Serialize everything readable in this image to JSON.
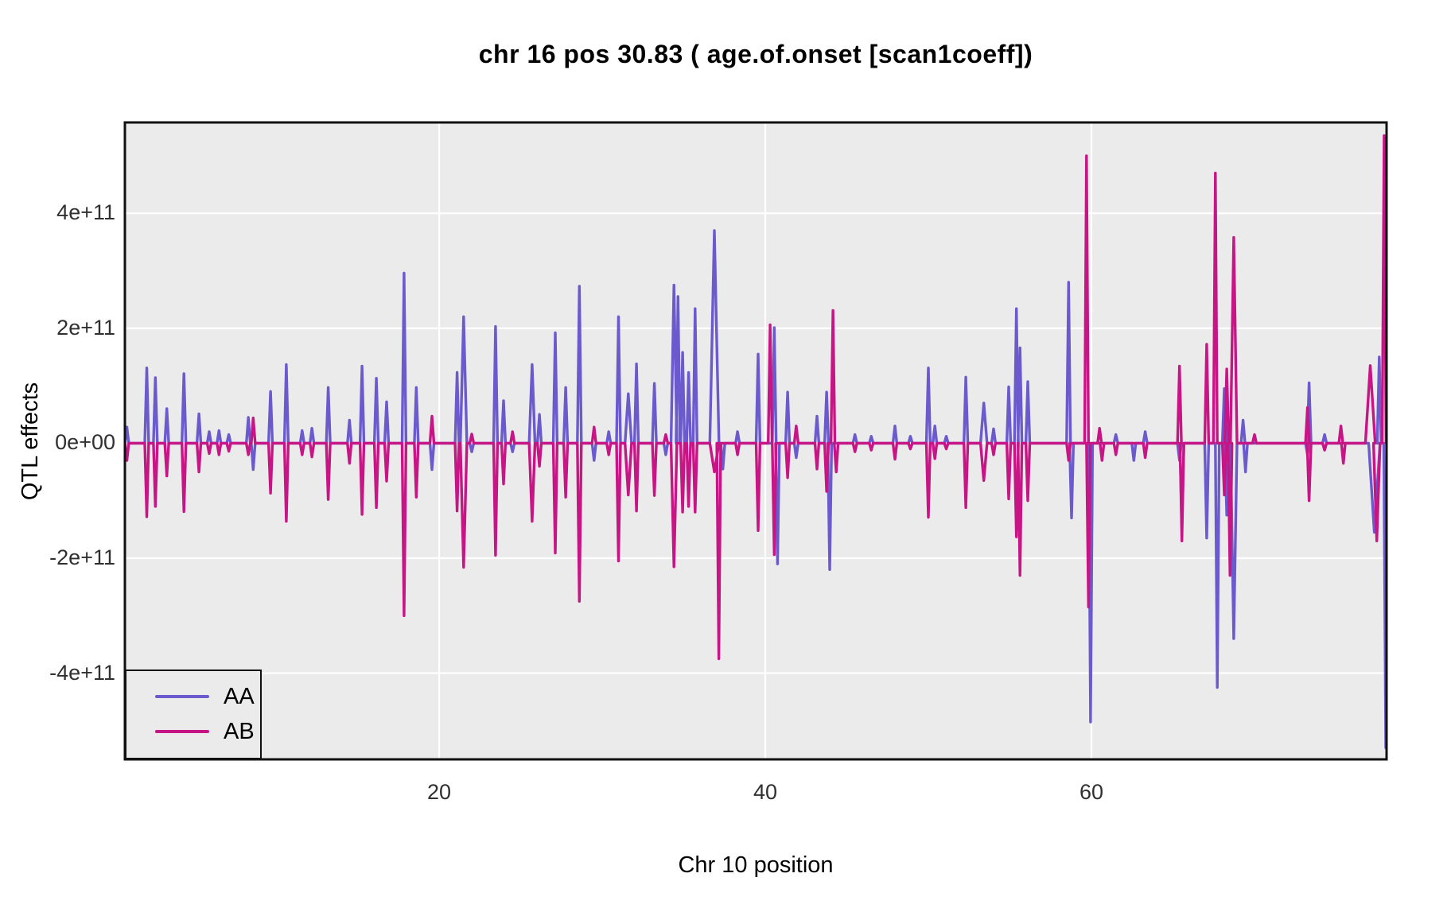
{
  "title": "chr 16 pos 30.83 ( age.of.onset  [scan1coeff])",
  "x_axis": {
    "title": "Chr 10 position",
    "tick_labels": [
      "20",
      "40",
      "60"
    ],
    "tick_values": [
      20,
      40,
      60
    ]
  },
  "y_axis": {
    "title": "QTL effects",
    "tick_labels": [
      "-4e+11",
      "-2e+11",
      "0e+00",
      "2e+11",
      "4e+11"
    ],
    "tick_values": [
      -400000000000.0,
      -200000000000.0,
      0,
      200000000000.0,
      400000000000.0
    ]
  },
  "legend": {
    "items": [
      {
        "label": "AA",
        "color": "#6A5ACD"
      },
      {
        "label": "AB",
        "color": "#C71585"
      }
    ]
  },
  "colors": {
    "panel_background": "#EBEBEB",
    "grid": "#FFFFFF",
    "panel_border": "#111111",
    "aa_line": "#6A5ACD",
    "ab_line": "#C71585"
  },
  "chart_data": {
    "type": "line",
    "title": "chr 16 pos 30.83 ( age.of.onset  [scan1coeff])",
    "xlabel": "Chr 10 position",
    "ylabel": "QTL effects",
    "series_names": [
      "AA",
      "AB"
    ],
    "legend_position": "bottom-left",
    "grid": "major-white-on-gray",
    "x_domain": [
      0.73,
      78.1
    ],
    "y_domain": [
      -550000000000.0,
      558000000000.0
    ],
    "baseline": 0,
    "default_spike_halfwidth": 0.12,
    "spikes": [
      {
        "x": 0.85,
        "aa": 28000000000.0,
        "ab": -30000000000.0
      },
      {
        "x": 2.07,
        "aa": 131000000000.0,
        "ab": -128000000000.0
      },
      {
        "x": 2.6,
        "aa": 114000000000.0,
        "ab": -110000000000.0
      },
      {
        "x": 3.3,
        "aa": 60000000000.0,
        "ab": -57000000000.0
      },
      {
        "x": 4.35,
        "aa": 121000000000.0,
        "ab": -119000000000.0
      },
      {
        "x": 5.27,
        "aa": 51000000000.0,
        "ab": -50000000000.0
      },
      {
        "x": 5.9,
        "aa": 20000000000.0,
        "ab": -18000000000.0
      },
      {
        "x": 6.5,
        "aa": 22000000000.0,
        "ab": -20000000000.0
      },
      {
        "x": 7.1,
        "aa": 15000000000.0,
        "ab": -14000000000.0
      },
      {
        "x": 8.3,
        "aa": 45000000000.0,
        "ab": -20000000000.0
      },
      {
        "x": 8.6,
        "aa": -46000000000.0,
        "ab": 44000000000.0
      },
      {
        "x": 9.66,
        "aa": 90000000000.0,
        "ab": -87000000000.0
      },
      {
        "x": 10.63,
        "aa": 137000000000.0,
        "ab": -136000000000.0
      },
      {
        "x": 11.6,
        "aa": 22000000000.0,
        "ab": -20000000000.0
      },
      {
        "x": 12.2,
        "aa": 26000000000.0,
        "ab": -24000000000.0
      },
      {
        "x": 13.2,
        "aa": 97000000000.0,
        "ab": -98000000000.0
      },
      {
        "x": 14.5,
        "aa": 40000000000.0,
        "ab": -35000000000.0
      },
      {
        "x": 15.27,
        "aa": 134000000000.0,
        "ab": -124000000000.0
      },
      {
        "x": 16.15,
        "aa": 113000000000.0,
        "ab": -112000000000.0
      },
      {
        "x": 16.78,
        "aa": 72000000000.0,
        "ab": -66000000000.0
      },
      {
        "x": 17.85,
        "aa": 296000000000.0,
        "ab": -300000000000.0
      },
      {
        "x": 18.6,
        "aa": 97000000000.0,
        "ab": -94000000000.0
      },
      {
        "x": 19.56,
        "aa": -46000000000.0,
        "ab": 47000000000.0
      },
      {
        "x": 21.1,
        "aa": 123000000000.0,
        "ab": -118000000000.0
      },
      {
        "x": 21.5,
        "aa": 220000000000.0,
        "ab": -216000000000.0,
        "w": 0.2
      },
      {
        "x": 22.0,
        "aa": -15000000000.0,
        "ab": 16000000000.0
      },
      {
        "x": 23.46,
        "aa": 203000000000.0,
        "ab": -195000000000.0
      },
      {
        "x": 23.95,
        "aa": 74000000000.0,
        "ab": -71000000000.0
      },
      {
        "x": 24.5,
        "aa": -15000000000.0,
        "ab": 20000000000.0
      },
      {
        "x": 25.7,
        "aa": 137000000000.0,
        "ab": -136000000000.0,
        "w": 0.18
      },
      {
        "x": 26.15,
        "aa": 50000000000.0,
        "ab": -40000000000.0
      },
      {
        "x": 27.12,
        "aa": 192000000000.0,
        "ab": -191000000000.0
      },
      {
        "x": 27.76,
        "aa": 97000000000.0,
        "ab": -94000000000.0
      },
      {
        "x": 28.6,
        "aa": 273000000000.0,
        "ab": -275000000000.0
      },
      {
        "x": 29.5,
        "aa": -30000000000.0,
        "ab": 28000000000.0
      },
      {
        "x": 30.4,
        "aa": 20000000000.0,
        "ab": -20000000000.0
      },
      {
        "x": 31.0,
        "aa": 220000000000.0,
        "ab": -205000000000.0
      },
      {
        "x": 31.6,
        "aa": 86000000000.0,
        "ab": -90000000000.0,
        "w": 0.2
      },
      {
        "x": 32.1,
        "aa": 138000000000.0,
        "ab": -118000000000.0
      },
      {
        "x": 33.2,
        "aa": 104000000000.0,
        "ab": -91000000000.0
      },
      {
        "x": 33.9,
        "aa": -20000000000.0,
        "ab": 15000000000.0
      },
      {
        "x": 34.4,
        "aa": 275000000000.0,
        "ab": -215000000000.0,
        "w": 0.18
      },
      {
        "x": 34.65,
        "aa": 255000000000.0
      },
      {
        "x": 34.93,
        "aa": 158000000000.0,
        "ab": -120000000000.0
      },
      {
        "x": 35.3,
        "aa": 123000000000.0,
        "ab": -110000000000.0
      },
      {
        "x": 35.7,
        "aa": 234000000000.0,
        "ab": -120000000000.0
      },
      {
        "x": 36.88,
        "aa": 370000000000.0,
        "ab": -50000000000.0,
        "w": 0.28
      },
      {
        "x": 37.15,
        "ab": -375000000000.0
      },
      {
        "x": 37.4,
        "aa": -45000000000.0
      },
      {
        "x": 38.3,
        "aa": 20000000000.0,
        "ab": -20000000000.0
      },
      {
        "x": 39.56,
        "aa": 155000000000.0,
        "ab": -152000000000.0
      },
      {
        "x": 40.3,
        "ab": 206000000000.0
      },
      {
        "x": 40.55,
        "aa": 201000000000.0,
        "ab": -194000000000.0
      },
      {
        "x": 40.75,
        "aa": -210000000000.0
      },
      {
        "x": 41.37,
        "aa": 89000000000.0,
        "ab": -60000000000.0
      },
      {
        "x": 41.9,
        "aa": -25000000000.0,
        "ab": 30000000000.0
      },
      {
        "x": 43.17,
        "aa": 47000000000.0,
        "ab": -45000000000.0
      },
      {
        "x": 43.76,
        "aa": 89000000000.0,
        "ab": -84000000000.0
      },
      {
        "x": 43.95,
        "aa": -220000000000.0
      },
      {
        "x": 44.15,
        "ab": 231000000000.0
      },
      {
        "x": 44.35,
        "ab": -50000000000.0
      },
      {
        "x": 45.5,
        "aa": 15000000000.0,
        "ab": -15000000000.0
      },
      {
        "x": 46.5,
        "aa": 12000000000.0,
        "ab": -12000000000.0
      },
      {
        "x": 47.95,
        "aa": 30000000000.0,
        "ab": -28000000000.0
      },
      {
        "x": 48.9,
        "aa": 12000000000.0,
        "ab": -10000000000.0
      },
      {
        "x": 50.0,
        "aa": 131000000000.0,
        "ab": -129000000000.0
      },
      {
        "x": 50.4,
        "aa": 30000000000.0,
        "ab": -27000000000.0
      },
      {
        "x": 51.1,
        "aa": 12000000000.0,
        "ab": -10000000000.0
      },
      {
        "x": 52.3,
        "aa": 115000000000.0,
        "ab": -112000000000.0
      },
      {
        "x": 53.4,
        "aa": 70000000000.0,
        "ab": -65000000000.0,
        "w": 0.2
      },
      {
        "x": 54.0,
        "aa": 25000000000.0,
        "ab": -20000000000.0
      },
      {
        "x": 54.93,
        "aa": 98000000000.0,
        "ab": -97000000000.0
      },
      {
        "x": 55.4,
        "aa": 234000000000.0,
        "ab": -163000000000.0
      },
      {
        "x": 55.62,
        "aa": 166000000000.0,
        "ab": -230000000000.0
      },
      {
        "x": 56.1,
        "aa": 107000000000.0,
        "ab": -100000000000.0
      },
      {
        "x": 58.6,
        "aa": 280000000000.0,
        "ab": -30000000000.0
      },
      {
        "x": 58.78,
        "aa": -130000000000.0
      },
      {
        "x": 59.7,
        "ab": 500000000000.0
      },
      {
        "x": 59.82,
        "ab": -285000000000.0
      },
      {
        "x": 59.95,
        "aa": -485000000000.0
      },
      {
        "x": 60.5,
        "ab": 26000000000.0
      },
      {
        "x": 60.65,
        "ab": -30000000000.0
      },
      {
        "x": 61.5,
        "aa": 15000000000.0,
        "ab": -20000000000.0
      },
      {
        "x": 62.6,
        "aa": -30000000000.0
      },
      {
        "x": 63.3,
        "aa": 20000000000.0,
        "ab": -25000000000.0
      },
      {
        "x": 65.4,
        "aa": -30000000000.0,
        "ab": 134000000000.0
      },
      {
        "x": 65.55,
        "aa": -150000000000.0,
        "ab": -170000000000.0
      },
      {
        "x": 67.07,
        "aa": -165000000000.0,
        "ab": 172000000000.0
      },
      {
        "x": 67.6,
        "ab": 470000000000.0
      },
      {
        "x": 67.72,
        "aa": -425000000000.0
      },
      {
        "x": 68.15,
        "aa": 95000000000.0,
        "ab": -90000000000.0
      },
      {
        "x": 68.3,
        "aa": -125000000000.0,
        "ab": 129000000000.0
      },
      {
        "x": 68.5,
        "ab": -230000000000.0
      },
      {
        "x": 68.73,
        "aa": -340000000000.0,
        "ab": 358000000000.0,
        "w": 0.2
      },
      {
        "x": 69.3,
        "aa": 40000000000.0
      },
      {
        "x": 69.45,
        "aa": -50000000000.0
      },
      {
        "x": 70.0,
        "ab": 15000000000.0
      },
      {
        "x": 73.25,
        "aa": -20000000000.0,
        "ab": 62000000000.0
      },
      {
        "x": 73.35,
        "aa": 105000000000.0,
        "ab": -100000000000.0
      },
      {
        "x": 74.3,
        "aa": 15000000000.0,
        "ab": -12000000000.0
      },
      {
        "x": 75.3,
        "ab": 30000000000.0
      },
      {
        "x": 75.45,
        "ab": -35000000000.0
      },
      {
        "x": 77.1,
        "ab": 135000000000.0,
        "w": 0.3
      },
      {
        "x": 77.35,
        "aa": -155000000000.0,
        "w": 0.35
      },
      {
        "x": 77.5,
        "ab": -170000000000.0,
        "w": 0.2
      },
      {
        "x": 77.65,
        "aa": 150000000000.0
      },
      {
        "x": 77.95,
        "ab": 535000000000.0
      },
      {
        "x": 78.05,
        "aa": -530000000000.0
      }
    ]
  }
}
